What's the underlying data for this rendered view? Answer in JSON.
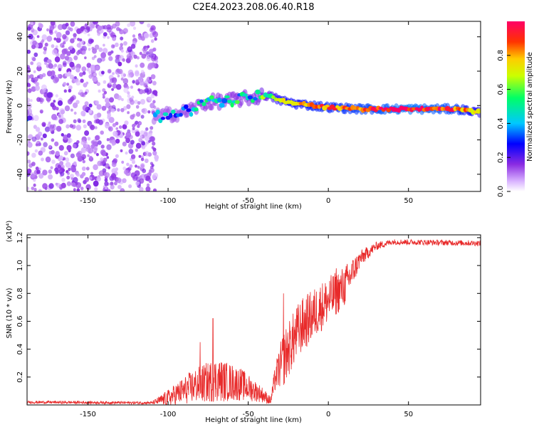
{
  "figure": {
    "title": "C2E4.2023.208.06.40.R18"
  },
  "chart_data": [
    {
      "type": "heatmap",
      "title": "C2E4.2023.208.06.40.R18",
      "xlabel": "Height of straight line (km)",
      "ylabel": "Frequency (Hz)",
      "xlim": [
        -188,
        95
      ],
      "ylim": [
        -50,
        49
      ],
      "x_ticks": [
        -150,
        -100,
        -50,
        0,
        50
      ],
      "y_ticks": [
        -40,
        -20,
        0,
        20,
        40
      ],
      "colorbar": {
        "label": "Normalized spectral amplitude",
        "range": [
          0,
          1
        ],
        "ticks": [
          0.0,
          0.2,
          0.4,
          0.6,
          0.8
        ],
        "colormap": [
          "#ffffff",
          "#d9b3ff",
          "#8a2be2",
          "#0000ff",
          "#00c8ff",
          "#00ff66",
          "#ccff00",
          "#ffcc00",
          "#ff3300",
          "#ff0066"
        ]
      },
      "noise_region": {
        "x_from": -188,
        "x_to": -107,
        "amplitude": 0.15
      },
      "ridge": [
        {
          "x": -185,
          "y": -7,
          "amplitude": 0.3
        },
        {
          "x": -105,
          "y": -6,
          "amplitude": 0.35
        },
        {
          "x": -90,
          "y": -4,
          "amplitude": 0.4
        },
        {
          "x": -75,
          "y": 2,
          "amplitude": 0.45
        },
        {
          "x": -60,
          "y": 3,
          "amplitude": 0.45
        },
        {
          "x": -45,
          "y": 5,
          "amplitude": 0.5
        },
        {
          "x": -38,
          "y": 6,
          "amplitude": 0.55
        },
        {
          "x": -30,
          "y": 3,
          "amplitude": 0.75
        },
        {
          "x": -20,
          "y": 1,
          "amplitude": 0.8
        },
        {
          "x": -10,
          "y": 0,
          "amplitude": 0.85
        },
        {
          "x": 0,
          "y": -1,
          "amplitude": 0.85
        },
        {
          "x": 20,
          "y": -2,
          "amplitude": 0.9
        },
        {
          "x": 50,
          "y": -2,
          "amplitude": 1.0
        },
        {
          "x": 80,
          "y": -2,
          "amplitude": 0.9
        },
        {
          "x": 95,
          "y": -4,
          "amplitude": 0.7
        }
      ]
    },
    {
      "type": "line",
      "xlabel": "Height of straight line (km)",
      "ylabel": "SNR (10 * v/v)",
      "y_multiplier": "(x10⁴)",
      "xlim": [
        -188,
        95
      ],
      "ylim": [
        0,
        1.22
      ],
      "x_ticks": [
        -150,
        -100,
        -50,
        0,
        50
      ],
      "y_ticks": [
        0.2,
        0.4,
        0.6,
        0.8,
        1.0,
        1.2
      ],
      "series_color": "#e82a2a",
      "envelope": [
        {
          "x": -188,
          "mean": 0.02,
          "amp": 0.01
        },
        {
          "x": -110,
          "mean": 0.015,
          "amp": 0.01
        },
        {
          "x": -100,
          "mean": 0.05,
          "amp": 0.06
        },
        {
          "x": -85,
          "mean": 0.13,
          "amp": 0.12
        },
        {
          "x": -70,
          "mean": 0.18,
          "amp": 0.16
        },
        {
          "x": -55,
          "mean": 0.15,
          "amp": 0.12
        },
        {
          "x": -42,
          "mean": 0.08,
          "amp": 0.06
        },
        {
          "x": -36,
          "mean": 0.03,
          "amp": 0.03
        },
        {
          "x": -33,
          "mean": 0.2,
          "amp": 0.1
        },
        {
          "x": -28,
          "mean": 0.33,
          "amp": 0.2
        },
        {
          "x": -18,
          "mean": 0.55,
          "amp": 0.2
        },
        {
          "x": -5,
          "mean": 0.7,
          "amp": 0.18
        },
        {
          "x": 10,
          "mean": 0.85,
          "amp": 0.15
        },
        {
          "x": 20,
          "mean": 1.05,
          "amp": 0.06
        },
        {
          "x": 30,
          "mean": 1.14,
          "amp": 0.03
        },
        {
          "x": 40,
          "mean": 1.17,
          "amp": 0.02
        },
        {
          "x": 95,
          "mean": 1.16,
          "amp": 0.02
        }
      ],
      "spikes": [
        {
          "x": -72,
          "value": 0.62
        },
        {
          "x": -80,
          "value": 0.45
        },
        {
          "x": -28,
          "value": 0.8
        },
        {
          "x": 5,
          "value": 0.98
        },
        {
          "x": 15,
          "value": 1.0
        }
      ]
    }
  ]
}
